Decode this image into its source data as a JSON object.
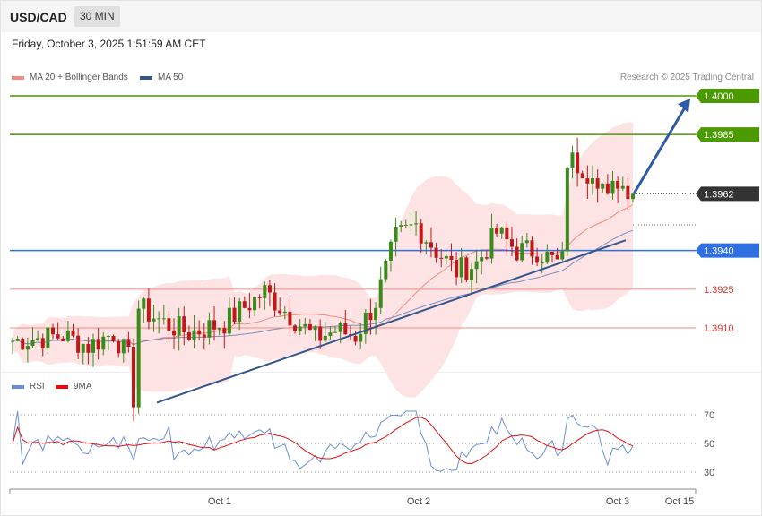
{
  "header": {
    "symbol": "USD/CAD",
    "timeframe": "30 MIN"
  },
  "datetime": "Friday, October 3, 2025 1:51:59 AM CET",
  "legend": {
    "ma20": {
      "label": "MA 20 + Bollinger Bands",
      "color": "#f28b82"
    },
    "ma50": {
      "label": "MA 50",
      "color": "#34568f"
    }
  },
  "credit": "Research © 2025 Trading Central",
  "rsi_legend": {
    "rsi": {
      "label": "RSI",
      "color": "#6b8fd6"
    },
    "ma9": {
      "label": "9MA",
      "color": "#e01010"
    }
  },
  "chart_data": [
    {
      "type": "candlestick",
      "ylim": [
        1.39,
        1.4
      ],
      "xticks": [
        "Oct 1",
        "Oct 2",
        "Oct 3",
        "Oct 15"
      ],
      "levels": [
        {
          "value": 1.4,
          "label": "1.4000",
          "color": "#4a9a00",
          "style": "resistance"
        },
        {
          "value": 1.3985,
          "label": "1.3985",
          "color": "#4a9a00",
          "style": "resistance"
        },
        {
          "value": 1.3962,
          "label": "1.3962",
          "color": "#333333",
          "style": "current"
        },
        {
          "value": 1.394,
          "label": "1.3940",
          "color": "#2f6fe0",
          "style": "pivot"
        },
        {
          "value": 1.3925,
          "label": "1.3925",
          "color": "#f28b82",
          "style": "support"
        },
        {
          "value": 1.391,
          "label": "1.3910",
          "color": "#f28b82",
          "style": "support"
        }
      ],
      "trendline": {
        "from": 1.3881,
        "to": 1.3944
      },
      "forecast_arrow": {
        "from": 1.3962,
        "to": 1.4
      }
    },
    {
      "type": "line",
      "title": "RSI",
      "ylim": [
        20,
        80
      ],
      "yticks": [
        "70",
        "50",
        "30"
      ],
      "series": [
        {
          "name": "RSI"
        },
        {
          "name": "9MA"
        }
      ]
    }
  ]
}
